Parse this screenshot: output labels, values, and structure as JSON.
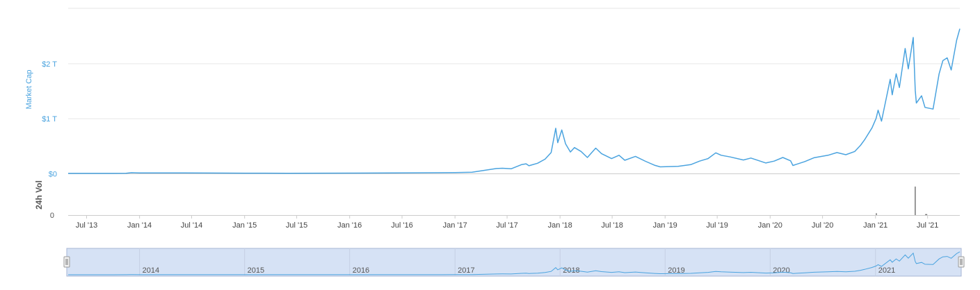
{
  "chart_data": {
    "type": "area",
    "series": [
      {
        "x": [
          "2013-04-28",
          "2013-07-01",
          "2013-10-01",
          "2013-11-15",
          "2013-12-04",
          "2014-01-01",
          "2014-03-01",
          "2014-06-01",
          "2014-09-01",
          "2015-01-01",
          "2015-06-01",
          "2016-01-01",
          "2016-06-01",
          "2017-01-01",
          "2017-03-01",
          "2017-05-25",
          "2017-06-15",
          "2017-07-15",
          "2017-08-20",
          "2017-09-05",
          "2017-09-15",
          "2017-10-15",
          "2017-11-10",
          "2017-12-01",
          "2017-12-17",
          "2017-12-24",
          "2018-01-07",
          "2018-01-20",
          "2018-02-06",
          "2018-02-20",
          "2018-03-15",
          "2018-04-06",
          "2018-05-05",
          "2018-05-25",
          "2018-06-29",
          "2018-07-25",
          "2018-08-14",
          "2018-09-20",
          "2018-10-25",
          "2018-11-25",
          "2018-12-15",
          "2019-01-15",
          "2019-02-15",
          "2019-03-31",
          "2019-05-01",
          "2019-05-30",
          "2019-06-26",
          "2019-07-15",
          "2019-08-15",
          "2019-09-30",
          "2019-10-26",
          "2019-12-17",
          "2020-01-15",
          "2020-02-14",
          "2020-03-12",
          "2020-03-20",
          "2020-04-30",
          "2020-06-01",
          "2020-07-20",
          "2020-08-20",
          "2020-09-20",
          "2020-10-21",
          "2020-11-10",
          "2020-11-24",
          "2020-12-20",
          "2021-01-03",
          "2021-01-10",
          "2021-01-22",
          "2021-02-21",
          "2021-02-28",
          "2021-03-14",
          "2021-03-25",
          "2021-04-14",
          "2021-04-25",
          "2021-05-12",
          "2021-05-19",
          "2021-05-23",
          "2021-06-10",
          "2021-06-22",
          "2021-07-20",
          "2021-08-10",
          "2021-08-23",
          "2021-09-07",
          "2021-09-21",
          "2021-10-10",
          "2021-10-21"
        ],
        "y": [
          1.5,
          1.2,
          1.8,
          4,
          14,
          10,
          10,
          9,
          8,
          5,
          4,
          6,
          9,
          17,
          22,
          90,
          95,
          85,
          160,
          175,
          140,
          185,
          260,
          380,
          820,
          560,
          790,
          540,
          390,
          470,
          400,
          290,
          460,
          360,
          270,
          330,
          240,
          310,
          220,
          150,
          120,
          125,
          130,
          160,
          225,
          270,
          375,
          330,
          300,
          245,
          280,
          190,
          225,
          290,
          230,
          145,
          215,
          285,
          330,
          380,
          340,
          400,
          510,
          610,
          830,
          1000,
          1150,
          950,
          1710,
          1430,
          1810,
          1560,
          2270,
          1900,
          2470,
          1510,
          1280,
          1410,
          1200,
          1170,
          1810,
          2050,
          2100,
          1880,
          2420,
          2630
        ]
      }
    ],
    "volume": {
      "x": [
        "2021-01-04",
        "2021-05-19",
        "2021-06-24",
        "2021-06-28"
      ],
      "y": [
        4,
        60,
        2,
        2
      ]
    },
    "ylabel": "Market Cap",
    "ytick_labels": [
      "$0",
      "$1 T",
      "$2 T"
    ],
    "ytick_values": [
      0,
      1000,
      2000
    ],
    "ylim": [
      0,
      3000
    ],
    "y_unit_scale": "billion USD",
    "volume_ylabel": "24h Vol",
    "volume_tick_label": "0",
    "xtick_labels": [
      "Jul '13",
      "Jan '14",
      "Jul '14",
      "Jan '15",
      "Jul '15",
      "Jan '16",
      "Jul '16",
      "Jan '17",
      "Jul '17",
      "Jan '18",
      "Jul '18",
      "Jan '19",
      "Jul '19",
      "Jan '20",
      "Jul '20",
      "Jan '21",
      "Jul '21"
    ],
    "navigator_labels": [
      "2014",
      "2015",
      "2016",
      "2017",
      "2018",
      "2019",
      "2020",
      "2021"
    ],
    "xlim": [
      "2013-04-28",
      "2021-10-21"
    ],
    "grid": true,
    "legend": "none",
    "colors": {
      "line": "#4aa3df",
      "grid": "#e6e6e6",
      "navigator_fill": "#d6e2f5",
      "navigator_border": "#a7b6d4",
      "volume": "#333333"
    }
  }
}
